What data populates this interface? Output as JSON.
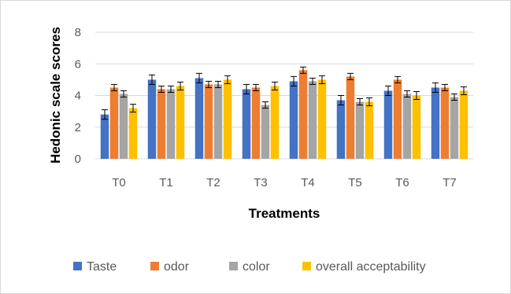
{
  "chart_data": {
    "type": "bar",
    "title": "",
    "xlabel": "Treatments",
    "ylabel": "Hedonic scale scores",
    "ylim": [
      0,
      8
    ],
    "yticks": [
      0,
      2,
      4,
      6,
      8
    ],
    "grid": true,
    "legend_position": "bottom",
    "categories": [
      "T0",
      "T1",
      "T2",
      "T3",
      "T4",
      "T5",
      "T6",
      "T7"
    ],
    "series": [
      {
        "name": "Taste",
        "color": "#4472C4",
        "values": [
          2.8,
          5.0,
          5.1,
          4.4,
          4.9,
          3.7,
          4.3,
          4.5
        ],
        "errors": [
          0.3,
          0.3,
          0.3,
          0.3,
          0.3,
          0.3,
          0.3,
          0.3
        ]
      },
      {
        "name": "odor",
        "color": "#ED7D31",
        "values": [
          4.5,
          4.4,
          4.7,
          4.5,
          5.6,
          5.2,
          5.0,
          4.5
        ],
        "errors": [
          0.2,
          0.2,
          0.2,
          0.2,
          0.2,
          0.2,
          0.2,
          0.2
        ]
      },
      {
        "name": "color",
        "color": "#A5A5A5",
        "values": [
          4.1,
          4.4,
          4.7,
          3.4,
          4.9,
          3.6,
          4.1,
          3.9
        ],
        "errors": [
          0.2,
          0.2,
          0.2,
          0.2,
          0.2,
          0.2,
          0.2,
          0.2
        ]
      },
      {
        "name": "overall acceptability",
        "color": "#FFC000",
        "values": [
          3.2,
          4.6,
          5.0,
          4.6,
          5.0,
          3.6,
          4.0,
          4.3
        ],
        "errors": [
          0.25,
          0.25,
          0.25,
          0.25,
          0.25,
          0.25,
          0.25,
          0.25
        ]
      }
    ]
  }
}
